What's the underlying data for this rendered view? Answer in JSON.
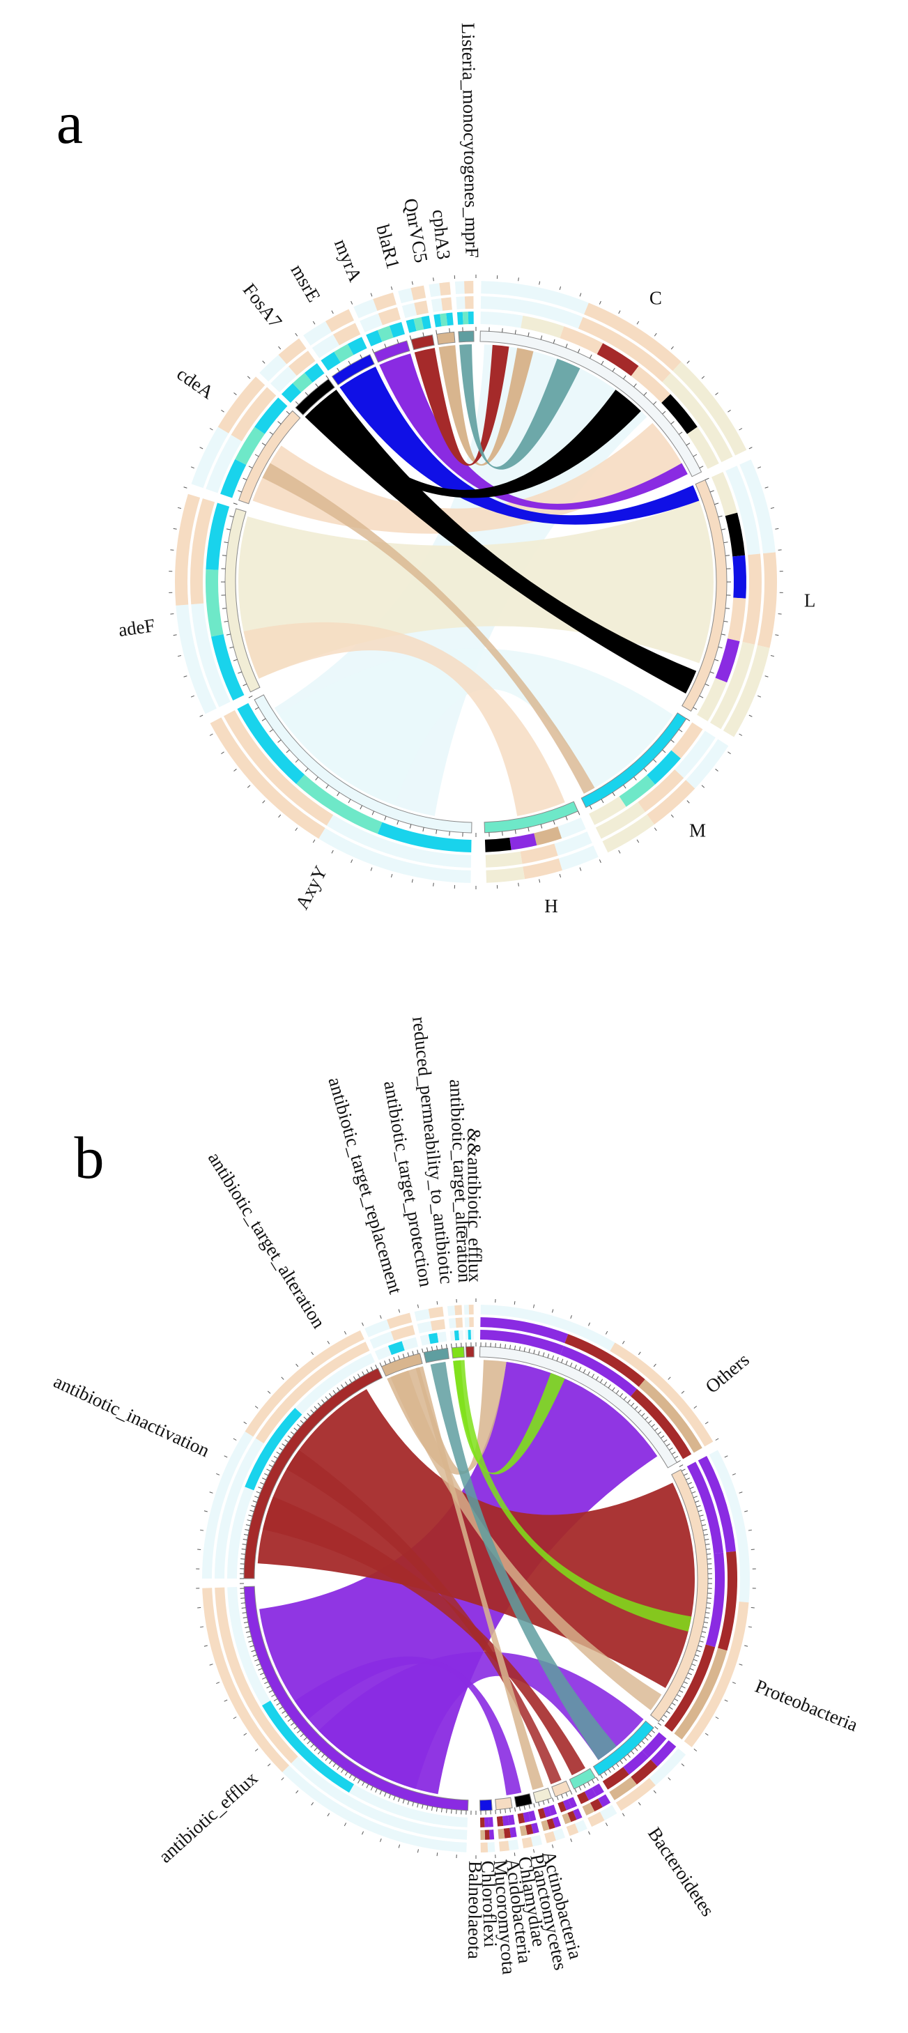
{
  "panel_a": {
    "label": "a",
    "targets": [
      "C",
      "L",
      "M",
      "H"
    ],
    "genes": [
      "AxyY",
      "adeF",
      "cdeA",
      "FosA7",
      "msrE",
      "myrA",
      "blaR1",
      "QnrVC5",
      "cphA3",
      "Listeria_monocytogenes_mprF"
    ]
  },
  "panel_b": {
    "label": "b",
    "phyla": [
      "Others",
      "Proteobacteria",
      "Bacteroidetes",
      "Actinobacteria",
      "Planctomycetes",
      "Chlamydiae",
      "Acidobacteria",
      "Mucoromycota",
      "Chloroflexi",
      "Balneolaeota"
    ],
    "mechanisms": [
      "antibiotic_efflux",
      "antibiotic_inactivation",
      "antibiotic_target_alteration",
      "antibiotic_target_replacement",
      "antibiotic_target_protection",
      "reduced_permeability_to_antibiotic",
      "antibiotic_target_alteration",
      "&&antibiotic_efflux"
    ]
  },
  "colors": {
    "chord_light": "#eaf8fb",
    "wheat": "#f1edd6",
    "peach": "#f6dcc2",
    "tan": "#d8b58e",
    "black": "#000000",
    "blue": "#1010e6",
    "purple": "#8a2be2",
    "cyan": "#19d3ec",
    "aqua": "#6ee8c8",
    "teal": "#5f9ea0",
    "brick": "#a52a2a",
    "green": "#7fe01a"
  }
}
